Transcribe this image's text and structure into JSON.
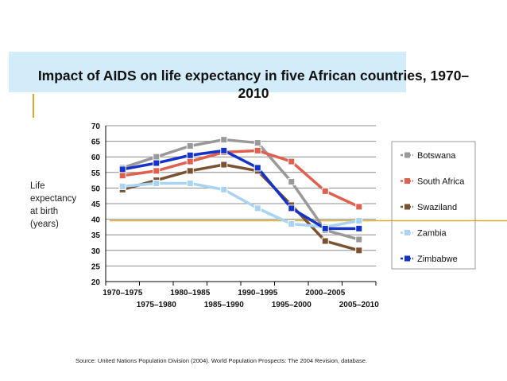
{
  "header": {
    "title_line1": "Impact of AIDS on life expectancy in five African countries, 1970–",
    "title_line2": "2010",
    "band_color": "#d3ecf9",
    "accent_color": "#d9a928"
  },
  "ylabel_lines": [
    "Life",
    "expectancy",
    "at birth",
    "(years)"
  ],
  "source": "Source:  United Nations Population Division (2004).  World Population Prospects: The 2004 Revision, database.",
  "chart_data": {
    "type": "line",
    "title": "Impact of AIDS on life expectancy in five African countries, 1970–2010",
    "xlabel": "",
    "ylabel": "Life expectancy at birth (years)",
    "categories": [
      "1970–1975",
      "1975–1980",
      "1980–1985",
      "1985–1990",
      "1990–1995",
      "1995–2000",
      "2000–2005",
      "2005–2010"
    ],
    "ylim": [
      20,
      70
    ],
    "yticks": [
      20,
      25,
      30,
      35,
      40,
      45,
      50,
      55,
      60,
      65,
      70
    ],
    "grid": true,
    "legend_position": "right",
    "reference_line": {
      "value": 39.5,
      "color": "#d9a928"
    },
    "series": [
      {
        "name": "Botswana",
        "color": "#999999",
        "values": [
          56.5,
          60,
          63.5,
          65.5,
          64.5,
          52,
          36.5,
          33.5
        ]
      },
      {
        "name": "South Africa",
        "color": "#e06050",
        "values": [
          54,
          55.5,
          58.5,
          61.5,
          62,
          58.5,
          49,
          44
        ]
      },
      {
        "name": "Swaziland",
        "color": "#7a5230",
        "values": [
          49.5,
          52.5,
          55.5,
          57.5,
          55.5,
          44.5,
          33,
          30
        ]
      },
      {
        "name": "Zambia",
        "color": "#a8d4f2",
        "values": [
          50.5,
          51.5,
          51.5,
          49.5,
          43.5,
          38.5,
          37.5,
          39.5
        ]
      },
      {
        "name": "Zimbabwe",
        "color": "#1533c8",
        "values": [
          56,
          58,
          60.5,
          62,
          56.5,
          43.5,
          37,
          37
        ]
      }
    ]
  }
}
